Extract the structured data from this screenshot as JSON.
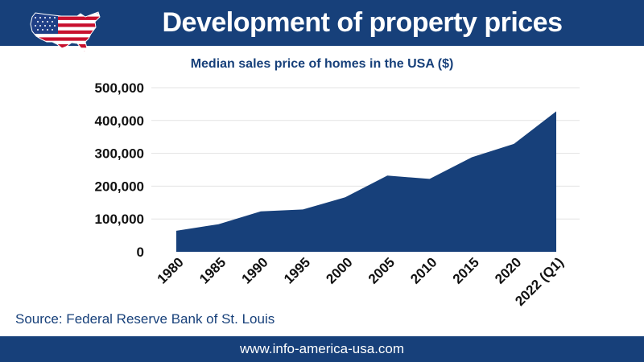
{
  "header": {
    "title": "Development of property prices",
    "flag_icon": "usa-map-flag-icon"
  },
  "chart_data": {
    "type": "area",
    "title": "Median sales price of homes in the USA ($)",
    "xlabel": "",
    "ylabel": "",
    "categories": [
      "1980",
      "1985",
      "1990",
      "1995",
      "2000",
      "2005",
      "2010",
      "2015",
      "2020",
      "2022 (Q1)"
    ],
    "values": [
      64000,
      84000,
      123000,
      129000,
      166000,
      232000,
      222000,
      288000,
      329000,
      428000
    ],
    "ylim": [
      0,
      500000
    ],
    "yticks": [
      "0",
      "100,000",
      "200,000",
      "300,000",
      "400,000",
      "500,000"
    ],
    "grid": true,
    "legend": "none",
    "color": "#17407a"
  },
  "source": "Source: Federal Reserve Bank of St. Louis",
  "footer": {
    "url": "www.info-america-usa.com"
  },
  "colors": {
    "brand": "#17407a",
    "flag_red": "#c8102e",
    "flag_blue": "#1f3f86"
  }
}
